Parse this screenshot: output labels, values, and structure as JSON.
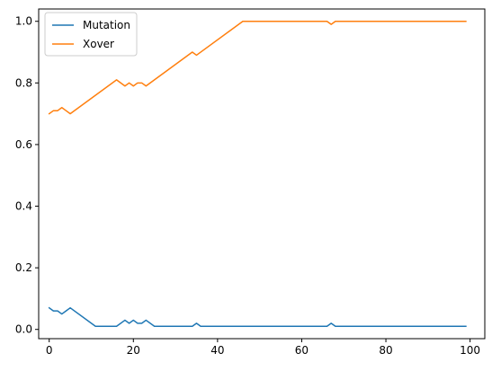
{
  "chart_data": {
    "type": "line",
    "title": "",
    "xlabel": "",
    "ylabel": "",
    "xlim": [
      -2.5,
      103.5
    ],
    "ylim": [
      -0.03,
      1.04
    ],
    "x_ticks": [
      0,
      20,
      40,
      60,
      80,
      100
    ],
    "y_ticks": [
      0.0,
      0.2,
      0.4,
      0.6,
      0.8,
      1.0
    ],
    "x_tick_labels": [
      "0",
      "20",
      "40",
      "60",
      "80",
      "100"
    ],
    "y_tick_labels": [
      "0.0",
      "0.2",
      "0.4",
      "0.6",
      "0.8",
      "1.0"
    ],
    "grid": false,
    "legend_position": "top-left",
    "series": [
      {
        "name": "Mutation",
        "color": "#1f77b4",
        "points": [
          [
            0,
            0.07
          ],
          [
            1,
            0.06
          ],
          [
            2,
            0.06
          ],
          [
            3,
            0.05
          ],
          [
            4,
            0.06
          ],
          [
            5,
            0.07
          ],
          [
            11,
            0.01
          ],
          [
            16,
            0.01
          ],
          [
            18,
            0.03
          ],
          [
            19,
            0.02
          ],
          [
            20,
            0.03
          ],
          [
            21,
            0.02
          ],
          [
            22,
            0.02
          ],
          [
            23,
            0.03
          ],
          [
            25,
            0.01
          ],
          [
            34,
            0.01
          ],
          [
            35,
            0.02
          ],
          [
            36,
            0.01
          ],
          [
            66,
            0.01
          ],
          [
            67,
            0.02
          ],
          [
            68,
            0.01
          ],
          [
            99,
            0.01
          ]
        ]
      },
      {
        "name": "Xover",
        "color": "#ff7f0e",
        "points": [
          [
            0,
            0.7
          ],
          [
            1,
            0.71
          ],
          [
            2,
            0.71
          ],
          [
            3,
            0.72
          ],
          [
            4,
            0.71
          ],
          [
            5,
            0.7
          ],
          [
            16,
            0.81
          ],
          [
            18,
            0.79
          ],
          [
            19,
            0.8
          ],
          [
            20,
            0.79
          ],
          [
            21,
            0.8
          ],
          [
            22,
            0.8
          ],
          [
            23,
            0.79
          ],
          [
            34,
            0.9
          ],
          [
            35,
            0.89
          ],
          [
            46,
            1.0
          ],
          [
            66,
            1.0
          ],
          [
            67,
            0.99
          ],
          [
            68,
            1.0
          ],
          [
            99,
            1.0
          ]
        ]
      }
    ]
  }
}
